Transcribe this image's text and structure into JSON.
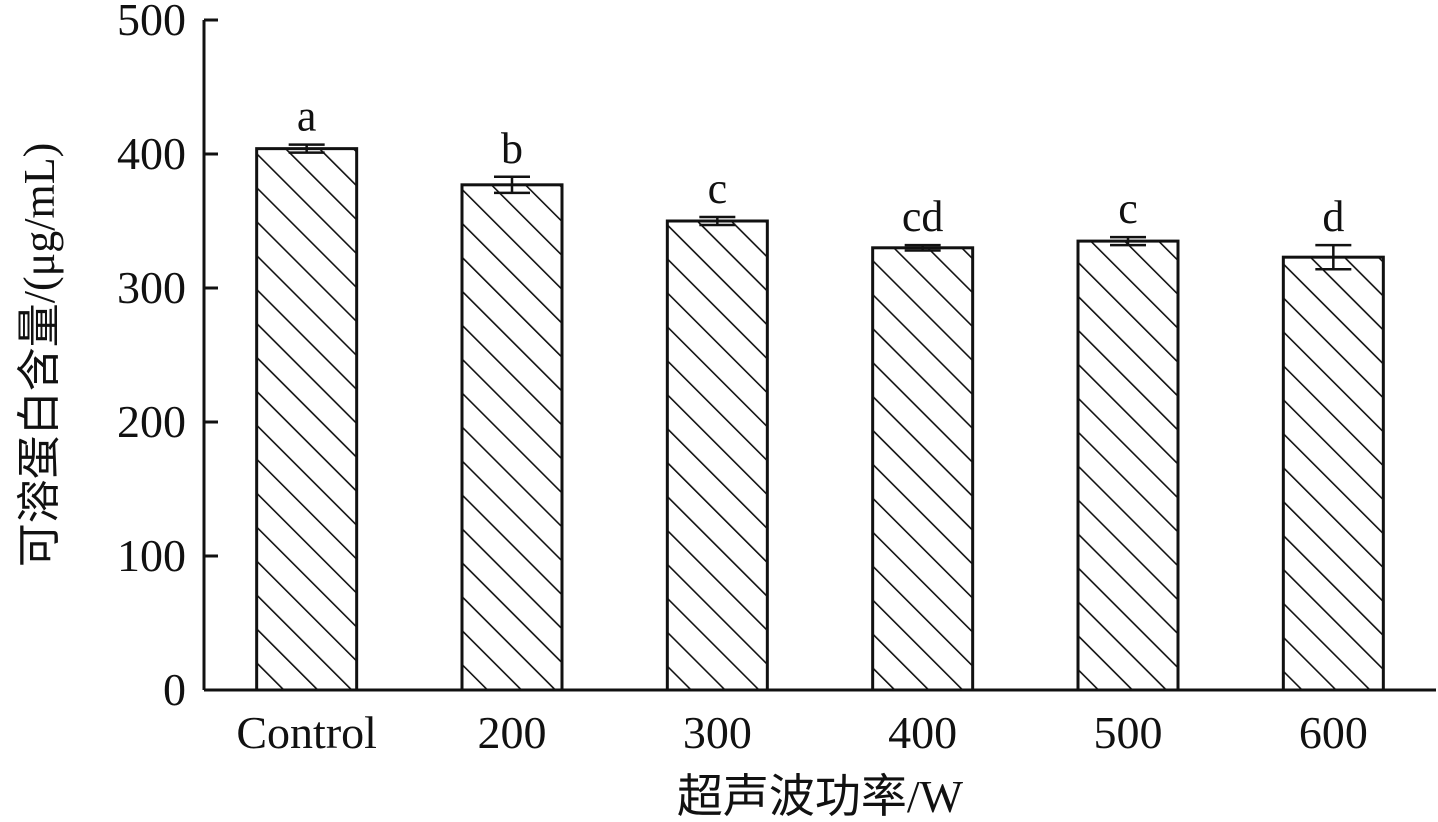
{
  "chart_data": {
    "type": "bar",
    "categories": [
      "Control",
      "200",
      "300",
      "400",
      "500",
      "600"
    ],
    "values": [
      404,
      377,
      350,
      330,
      335,
      323
    ],
    "errors": [
      3,
      6,
      3,
      2,
      3,
      9
    ],
    "significance": [
      "a",
      "b",
      "c",
      "cd",
      "c",
      "d"
    ],
    "xlabel": "超声波功率/W",
    "ylabel": "可溶蛋白含量/(μg/mL)",
    "ylim": [
      0,
      500
    ],
    "yticks": [
      0,
      100,
      200,
      300,
      400,
      500
    ],
    "bar_fill": "diagonal-hatch",
    "bar_color": "#111111",
    "grid": false,
    "legend": "none"
  }
}
